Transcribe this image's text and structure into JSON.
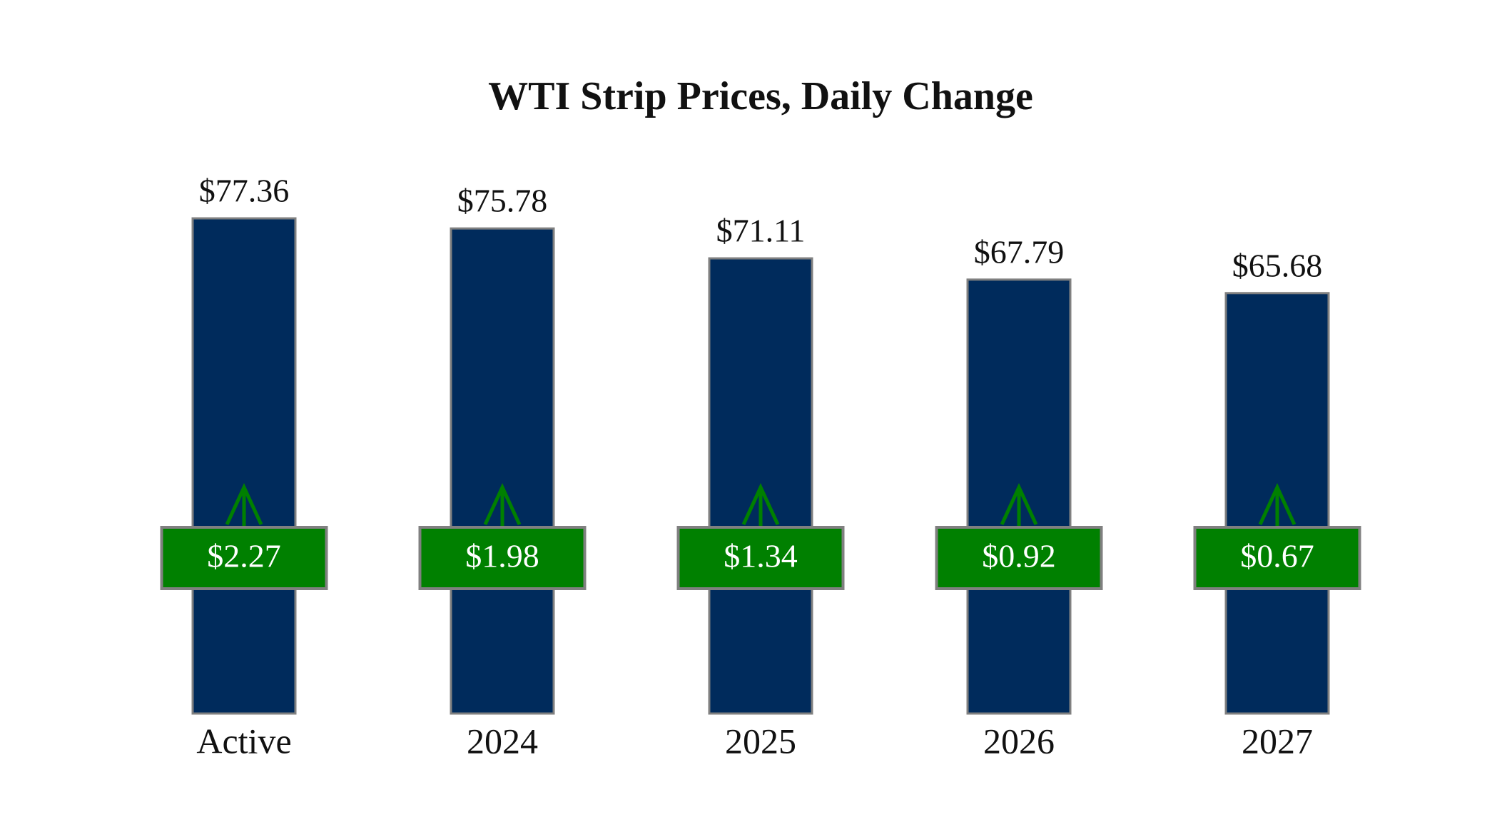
{
  "chart_data": {
    "type": "bar",
    "title": "WTI Strip Prices, Daily Change",
    "categories": [
      "Active",
      "2024",
      "2025",
      "2026",
      "2027"
    ],
    "values": [
      77.36,
      75.78,
      71.11,
      67.79,
      65.68
    ],
    "value_labels": [
      "$77.36",
      "$75.78",
      "$71.11",
      "$67.79",
      "$65.68"
    ],
    "changes": [
      2.27,
      1.98,
      1.34,
      0.92,
      0.67
    ],
    "change_labels": [
      "$2.27",
      "$1.98",
      "$1.34",
      "$0.92",
      "$0.67"
    ],
    "color": "#002b5c",
    "change_color": "#008000"
  }
}
